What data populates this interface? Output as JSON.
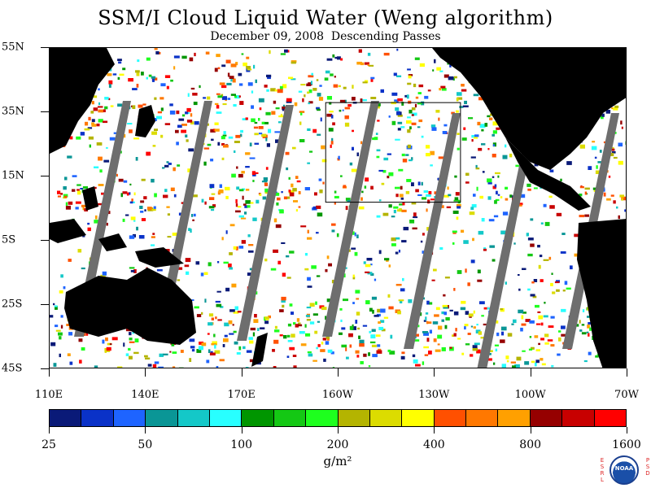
{
  "title": "SSM/I Cloud Liquid Water (Weng algorithm)",
  "subtitle": "December 09, 2008  Descending Passes",
  "map": {
    "lat_range": [
      -45,
      55
    ],
    "lon_range_east": [
      110,
      290
    ],
    "latitude_labels": [
      {
        "text": "55N",
        "lat": 55
      },
      {
        "text": "35N",
        "lat": 35
      },
      {
        "text": "15N",
        "lat": 15
      },
      {
        "text": "5S",
        "lat": -5
      },
      {
        "text": "25S",
        "lat": -25
      },
      {
        "text": "45S",
        "lat": -45
      }
    ],
    "longitude_labels": [
      {
        "text": "110E",
        "lon": 110
      },
      {
        "text": "140E",
        "lon": 140
      },
      {
        "text": "170E",
        "lon": 170
      },
      {
        "text": "160W",
        "lon": 200
      },
      {
        "text": "130W",
        "lon": 230
      },
      {
        "text": "100W",
        "lon": 260
      },
      {
        "text": "70W",
        "lon": 290
      }
    ],
    "highlight_box": {
      "lon": [
        196,
        238
      ],
      "lat": [
        7,
        38
      ]
    },
    "colors": {
      "land": "#000000",
      "ocean": "#ffffff",
      "missing_swath": "#6e6e6e",
      "box": "#000000"
    }
  },
  "colorbar": {
    "colors": [
      "#0a1a78",
      "#0a32c8",
      "#1e64ff",
      "#0a9696",
      "#14c8c8",
      "#28ffff",
      "#009600",
      "#14c814",
      "#1eff1e",
      "#b4b400",
      "#dcdc00",
      "#ffff00",
      "#ff5000",
      "#ff7800",
      "#ffa000",
      "#960000",
      "#c80000",
      "#ff0000"
    ],
    "labels": [
      "25",
      "50",
      "100",
      "200",
      "400",
      "800",
      "1600"
    ],
    "units": "g/m²"
  },
  "logo": {
    "left": "ESRL",
    "right": "PSD",
    "center": "NOAA"
  }
}
